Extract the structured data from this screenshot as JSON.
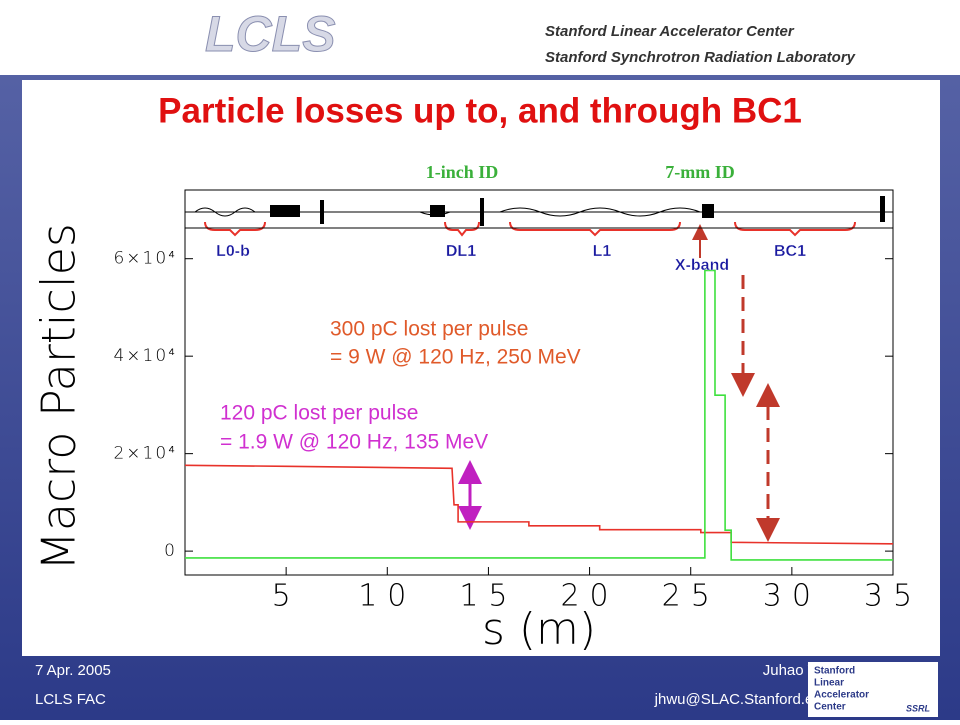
{
  "header": {
    "logo": "LCLS",
    "line1": "Stanford Linear Accelerator Center",
    "line2": "Stanford Synchrotron Radiation Laboratory"
  },
  "footer": {
    "date": "7 Apr. 2005",
    "venue": "LCLS FAC",
    "author": "Juhao Wu",
    "email": "jhwu@SLAC.Stanford.edu",
    "logo_lines": [
      "Stanford",
      "Linear",
      "Accelerator",
      "Center"
    ],
    "logo2": "SSRL"
  },
  "chart_data": {
    "type": "line",
    "title": "Particle losses up to, and through BC1",
    "x_label": "s (m)",
    "y_label": "Macro Particles",
    "xlim": [
      0,
      35
    ],
    "xticks": [
      5,
      10,
      15,
      20,
      25,
      30,
      35
    ],
    "ylim": [
      -4900,
      66300
    ],
    "yticks": [
      0,
      {
        "value": 20000,
        "label": "2×10⁴"
      },
      {
        "value": 40000,
        "label": "4×10⁴"
      },
      {
        "value": 60000,
        "label": "6×10⁴"
      }
    ],
    "series": [
      {
        "color": "#e8322a",
        "x": [
          0,
          5,
          13.2,
          13.3,
          13.5,
          13.5,
          17,
          17,
          20.5,
          20.5,
          25.5,
          25.5,
          27,
          27,
          35
        ],
        "values": [
          17600,
          17400,
          17000,
          9500,
          9500,
          6000,
          6000,
          5200,
          5200,
          4400,
          4400,
          3800,
          3800,
          1800,
          1500
        ]
      },
      {
        "color": "#3ee03e",
        "x": [
          0,
          25.7,
          25.7,
          26.2,
          26.2,
          26.7,
          26.7,
          27,
          27,
          35
        ],
        "values": [
          -1400,
          -1400,
          57600,
          57600,
          32000,
          32000,
          4300,
          4300,
          -1800,
          -1800
        ]
      }
    ],
    "sections": [
      "L0-b",
      "DL1",
      "L1",
      "X-band",
      "BC1"
    ],
    "pipe_labels": [
      "1-inch ID",
      "7-mm ID"
    ],
    "annotations": [
      "300 pC lost per pulse",
      "= 9 W @ 120 Hz, 250 MeV",
      "120 pC lost per pulse",
      "= 1.9 W @ 120 Hz, 135 MeV"
    ]
  }
}
